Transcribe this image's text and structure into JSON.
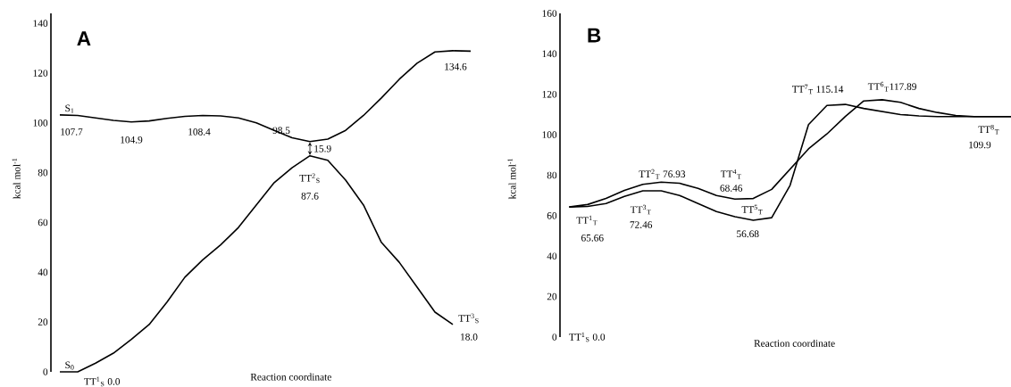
{
  "chart_data": [
    {
      "type": "line",
      "title": "A",
      "xlabel": "Reaction coordinate",
      "ylabel": "kcal mol$^{-1}$",
      "categories": [
        null,
        null,
        null,
        null,
        null,
        null,
        null,
        null,
        null,
        null,
        null,
        null,
        null,
        null,
        null,
        null,
        null,
        null,
        null,
        null,
        null,
        null,
        null,
        null
      ],
      "series": [
        {
          "name": "S$_{1}$",
          "color": "#000000",
          "values": [
            103.2,
            103,
            102,
            101,
            100.4,
            100.8,
            101.8,
            102.6,
            103,
            102.8,
            102,
            100,
            97,
            94,
            92.5,
            93.5,
            97,
            103,
            110,
            117.5,
            124,
            128.5,
            129,
            128.8
          ]
        },
        {
          "name": "S$_{0}$",
          "color": "#000000",
          "values": [
            0,
            0,
            3.5,
            7.5,
            13,
            19,
            28,
            38,
            45,
            51,
            58,
            67,
            76,
            82,
            86.8,
            85,
            77,
            67,
            52,
            44,
            34,
            24,
            19,
            null
          ]
        }
      ],
      "ylim": [
        0,
        144
      ],
      "yticks": [
        0,
        20,
        40,
        60,
        80,
        100,
        120,
        140
      ],
      "annotations": [
        "107.7",
        "104.9",
        "108.4",
        "98.5",
        "15.9",
        "TT$^{2}$$_{S}$",
        "87.6",
        "134.6",
        "TT$^{3}$$_{S}$",
        "18.0",
        "TT$^{1}$$_{S}$ 0.0"
      ]
    },
    {
      "type": "line",
      "title": "B",
      "xlabel": "Reaction coordinate",
      "ylabel": "kcal mol$^{-1}$",
      "categories": [
        null,
        null,
        null,
        null,
        null,
        null,
        null,
        null,
        null,
        null,
        null,
        null,
        null,
        null,
        null,
        null,
        null,
        null,
        null,
        null,
        null,
        null,
        null,
        null,
        null
      ],
      "series": [
        {
          "color": "#000000",
          "values": [
            64.3,
            65.5,
            68.5,
            72.5,
            75.5,
            76.6,
            76,
            73.5,
            70,
            68.2,
            68.5,
            73,
            83,
            93,
            100.4,
            109,
            116.7,
            117.3,
            116,
            113,
            111,
            109.5,
            109,
            109,
            109
          ]
        },
        {
          "color": "#000000",
          "values": [
            64.3,
            64.6,
            66,
            69.5,
            72.3,
            72.3,
            70,
            66,
            62,
            59.5,
            57.7,
            59,
            75,
            105,
            114.5,
            115,
            113,
            111.5,
            110,
            109.3,
            109,
            109,
            109,
            109,
            109
          ]
        }
      ],
      "ylim": [
        0,
        160
      ],
      "yticks": [
        0,
        20,
        40,
        60,
        80,
        100,
        120,
        140,
        160
      ],
      "annotations": [
        "TT$^{1}$$_{S}$ 0.0",
        "TT$^{1}$$_{T}$",
        "65.66",
        "TT$^{2}$$_{T}$ 76.93",
        "TT$^{3}$$_{T}$",
        "72.46",
        "TT$^{4}$$_{T}$",
        "68.46",
        "TT$^{5}$$_{T}$",
        "56.68",
        "TT$^{7}$$_{T}$ 115.14",
        "TT$^{6}$$_{T}$117.89",
        "TT$^{8}$$_{T}$",
        "109.9"
      ]
    }
  ]
}
